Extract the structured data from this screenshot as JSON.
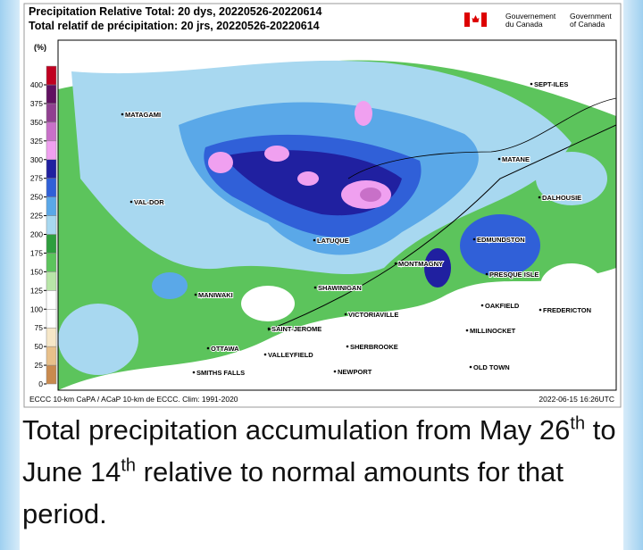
{
  "header": {
    "title_en": "Precipitation Relative Total: 20 dys, 20220526-20220614",
    "title_fr": "Total relatif de précipitation: 20 jrs, 20220526-20220614",
    "gov_fr": [
      "Gouvernement",
      "du Canada"
    ],
    "gov_en": [
      "Government",
      "of Canada"
    ]
  },
  "legend": {
    "unit": "(%)",
    "ticks": [
      0,
      25,
      50,
      75,
      100,
      125,
      150,
      175,
      200,
      225,
      250,
      275,
      300,
      325,
      350,
      375,
      400
    ],
    "colors": [
      "#c98a4e",
      "#e8c08a",
      "#f6e7c8",
      "#ffffff",
      "#ffffff",
      "#b8e6a8",
      "#5cc45c",
      "#2e9e3e",
      "#a8d8f0",
      "#5aa8e8",
      "#3060d8",
      "#2020a0",
      "#f0a0f0",
      "#c870c8",
      "#904090",
      "#601060",
      "#c00020"
    ]
  },
  "cities": [
    "SEPT-ILES",
    "MATAGAMI",
    "MATANE",
    "VAL-DOR",
    "DALHOUSIE",
    "LATUQUE",
    "EDMUNDSTON",
    "MONTMAGNY",
    "PRESQUE ISLE",
    "MANIWAKI",
    "SHAWINIGAN",
    "OAKFIELD",
    "FREDERICTON",
    "VICTORIAVILLE",
    "SAINT-JEROME",
    "MILLINOCKET",
    "SHERBROOKE",
    "OTTAWA",
    "VALLEYFIELD",
    "OLD TOWN",
    "NEWPORT",
    "SMITHS FALLS"
  ],
  "footer": {
    "source": "ECCC 10-km CaPA / ACaP 10-km de ECCC. Clim: 1991-2020",
    "timestamp": "2022-06-15 16:26UTC"
  },
  "caption": {
    "part_1": "Total precipitation accumulation from May 26",
    "sup_1": "th",
    "part_2": " to June 14",
    "sup_2": "th",
    "part_3": " relative to normal amounts for that period."
  }
}
